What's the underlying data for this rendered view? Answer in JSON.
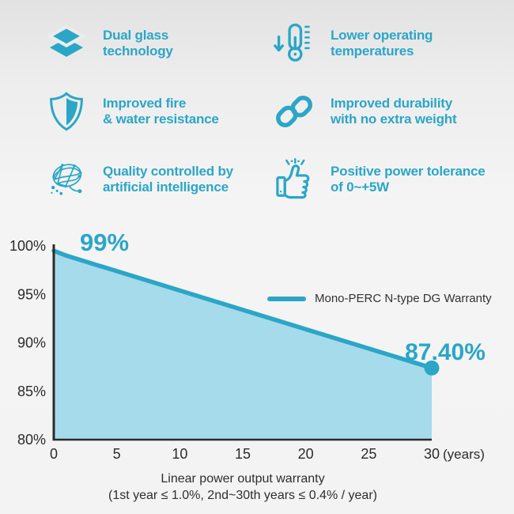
{
  "page": {
    "accent_color": "#2BA6C7",
    "background_color": "#f3f3f3"
  },
  "features": [
    {
      "icon": "layers-icon",
      "lines": [
        "Dual glass",
        "technology"
      ]
    },
    {
      "icon": "thermometer-down-icon",
      "lines": [
        "Lower operating",
        "temperatures"
      ]
    },
    {
      "icon": "shield-icon",
      "lines": [
        "Improved fire",
        "& water resistance"
      ]
    },
    {
      "icon": "chain-links-icon",
      "lines": [
        "Improved durability",
        "with no extra weight"
      ]
    },
    {
      "icon": "ai-network-icon",
      "lines": [
        "Quality controlled by",
        "artificial intelligence"
      ]
    },
    {
      "icon": "thumbs-up-icon",
      "lines": [
        "Positive power tolerance",
        "of 0~+5W"
      ]
    }
  ],
  "chart_data": {
    "type": "area",
    "title": "",
    "xlabel": "",
    "ylabel": "",
    "xlim": [
      0,
      30
    ],
    "ylim": [
      80,
      100
    ],
    "grid": false,
    "series": [
      {
        "name": "Mono-PERC N-type DG Warranty",
        "points": [
          [
            0,
            99.5
          ],
          [
            1,
            99
          ],
          [
            30,
            87.4
          ]
        ]
      }
    ],
    "x_ticks": [
      {
        "value": 0,
        "label": "0"
      },
      {
        "value": 5,
        "label": "5"
      },
      {
        "value": 10,
        "label": "10"
      },
      {
        "value": 15,
        "label": "15"
      },
      {
        "value": 20,
        "label": "20"
      },
      {
        "value": 25,
        "label": "25"
      },
      {
        "value": 30,
        "label": "30"
      }
    ],
    "x_unit_label": "(years)",
    "y_ticks": [
      {
        "value": 100,
        "label": "100%"
      },
      {
        "value": 95,
        "label": "95%"
      },
      {
        "value": 90,
        "label": "90%"
      },
      {
        "value": 85,
        "label": "85%"
      },
      {
        "value": 80,
        "label": "80%"
      }
    ],
    "annotations": {
      "start": "99%",
      "end": "87.40%"
    },
    "legend": {
      "label": "Mono-PERC N-type DG Warranty",
      "position": "center-right"
    },
    "colors": {
      "line": "#2BA6C7",
      "fill": "#A6DBEB",
      "axis": "#2b2b2b",
      "tick_text": "#2b2b2b"
    },
    "caption": [
      "Linear power output warranty",
      "(1st year ≤ 1.0%, 2nd~30th years ≤ 0.4% / year)"
    ]
  }
}
